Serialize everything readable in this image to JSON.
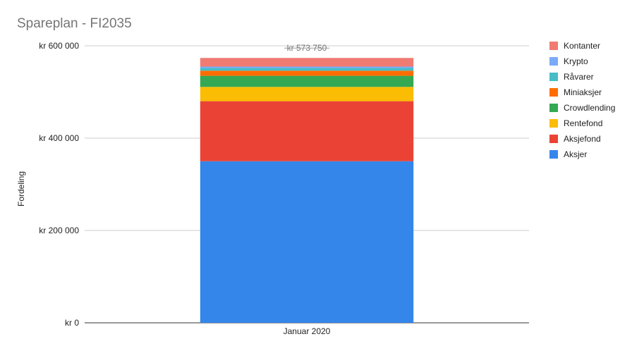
{
  "chart_data": {
    "type": "bar",
    "stacked": true,
    "title": "Spareplan - FI2035",
    "xlabel": "",
    "ylabel": "Fordeling",
    "categories": [
      "Januar 2020"
    ],
    "ylim": [
      0,
      600000
    ],
    "yticks": [
      0,
      200000,
      400000,
      600000
    ],
    "ytick_labels": [
      "kr  0",
      "kr  200 000",
      "kr  400 000",
      "kr  600 000"
    ],
    "grid": true,
    "legend_position": "right",
    "total_label": "kr  573 750",
    "series": [
      {
        "name": "Aksjer",
        "color": "#3486eb",
        "values": [
          350000
        ]
      },
      {
        "name": "Aksjefond",
        "color": "#ea4335",
        "values": [
          130000
        ]
      },
      {
        "name": "Rentefond",
        "color": "#fbbc04",
        "values": [
          31000
        ]
      },
      {
        "name": "Crowdlending",
        "color": "#34a853",
        "values": [
          24000
        ]
      },
      {
        "name": "Miniaksjer",
        "color": "#ff6d01",
        "values": [
          11000
        ]
      },
      {
        "name": "Råvarer",
        "color": "#46bdc6",
        "values": [
          6000
        ]
      },
      {
        "name": "Krypto",
        "color": "#7baaf7",
        "values": [
          3000
        ]
      },
      {
        "name": "Kontanter",
        "color": "#f07b72",
        "values": [
          18750
        ]
      }
    ]
  }
}
